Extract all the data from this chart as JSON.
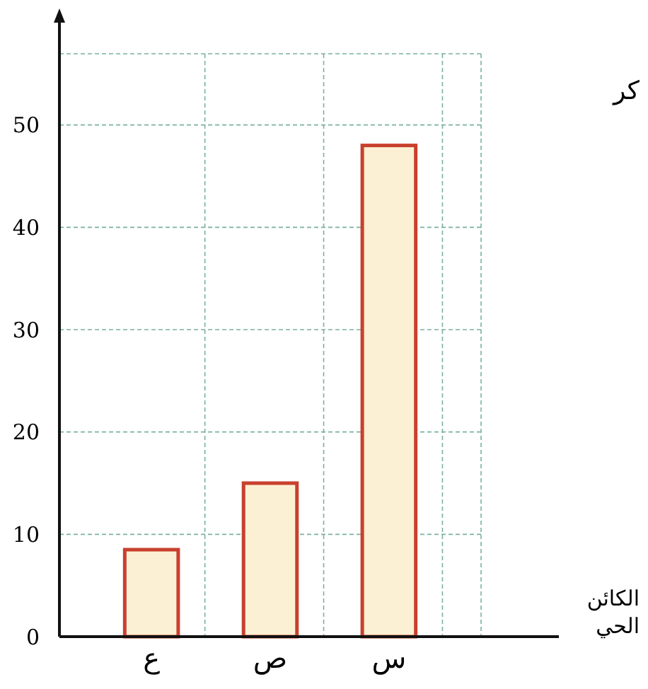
{
  "chart_data": {
    "type": "bar",
    "xlabel": "الكائن الحي",
    "categories": [
      "ع",
      "ص",
      "س"
    ],
    "values": [
      8.5,
      15,
      48
    ],
    "color": "#fbf0d4",
    "ylim": [
      0,
      60
    ],
    "yticks": [
      0,
      10,
      20,
      30,
      40,
      50
    ],
    "grid": true,
    "annotations": [
      "كر"
    ]
  }
}
